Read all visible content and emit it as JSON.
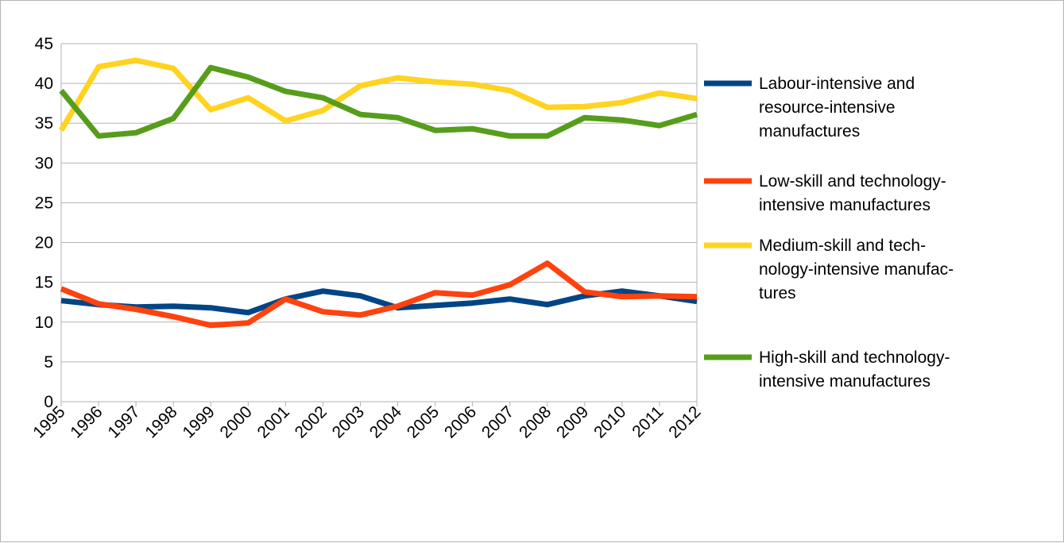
{
  "chart_data": {
    "type": "line",
    "title": "",
    "xlabel": "",
    "ylabel": "",
    "x": [
      "1995",
      "1996",
      "1997",
      "1998",
      "1999",
      "2000",
      "2001",
      "2002",
      "2003",
      "2004",
      "2005",
      "2006",
      "2007",
      "2008",
      "2009",
      "2010",
      "2011",
      "2012"
    ],
    "ylim": [
      0,
      45
    ],
    "yticks": [
      "0",
      "5",
      "10",
      "15",
      "20",
      "25",
      "30",
      "35",
      "40",
      "45"
    ],
    "grid": true,
    "legend_position": "right",
    "series": [
      {
        "name": "Labour-intensive and resource-intensive manufactures",
        "legend_lines": [
          "Labour-intensive and",
          "resource-intensive",
          "manufactures"
        ],
        "color": "#004586",
        "values": [
          12.7,
          12.2,
          11.9,
          12.0,
          11.8,
          11.2,
          12.9,
          13.9,
          13.3,
          11.8,
          12.1,
          12.4,
          12.9,
          12.2,
          13.3,
          13.9,
          13.3,
          12.6
        ]
      },
      {
        "name": "Low-skill and technology-intensive manufactures",
        "legend_lines": [
          "Low-skill and technology-",
          "intensive manufactures"
        ],
        "color": "#ff420e",
        "values": [
          14.2,
          12.3,
          11.6,
          10.7,
          9.6,
          9.9,
          12.9,
          11.3,
          10.9,
          12.0,
          13.7,
          13.4,
          14.7,
          17.4,
          13.8,
          13.2,
          13.3,
          13.2
        ]
      },
      {
        "name": "Medium-skill and technology-intensive manufactures",
        "legend_lines": [
          "Medium-skill and tech-",
          "nology-intensive manufac-",
          "tures"
        ],
        "color": "#ffd320",
        "values": [
          34.1,
          42.1,
          42.9,
          41.9,
          36.7,
          38.2,
          35.3,
          36.6,
          39.7,
          40.7,
          40.2,
          39.9,
          39.1,
          37.0,
          37.1,
          37.6,
          38.8,
          38.1
        ]
      },
      {
        "name": "High-skill and technology-intensive manufactures",
        "legend_lines": [
          "High-skill and technology-",
          "intensive manufactures"
        ],
        "color": "#579d1c",
        "values": [
          39.1,
          33.4,
          33.8,
          35.6,
          42.0,
          40.8,
          39.0,
          38.2,
          36.1,
          35.7,
          34.1,
          34.3,
          33.4,
          33.4,
          35.7,
          35.4,
          34.7,
          36.1
        ]
      }
    ]
  }
}
